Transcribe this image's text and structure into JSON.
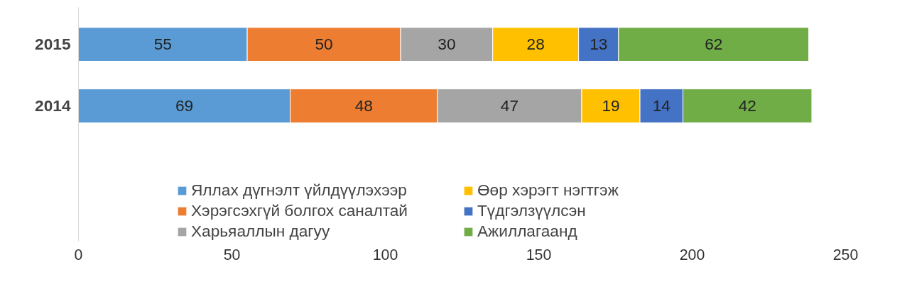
{
  "chart_data": {
    "type": "bar",
    "orientation": "horizontal",
    "stacked": true,
    "data_labels": true,
    "legend": "bottom",
    "grid": false,
    "categories": [
      "2015",
      "2014"
    ],
    "xlim": [
      0,
      250
    ],
    "xticks": [
      0,
      50,
      100,
      150,
      200,
      250
    ],
    "series": [
      {
        "name": "Яллах дүгнэлт үйлдүүлэхээр",
        "color": "#5b9bd5",
        "values": [
          55,
          69
        ]
      },
      {
        "name": "Хэрэгсэхгүй болгох саналтай",
        "color": "#ed7d31",
        "values": [
          50,
          48
        ]
      },
      {
        "name": "Харьяаллын дагуу",
        "color": "#a5a5a5",
        "values": [
          30,
          47
        ]
      },
      {
        "name": "Өөр хэрэгт нэгтгэж",
        "color": "#ffc000",
        "values": [
          28,
          19
        ]
      },
      {
        "name": "Түдгэлзүүлсэн",
        "color": "#4472c4",
        "values": [
          13,
          14
        ]
      },
      {
        "name": "Ажиллагаанд",
        "color": "#70ad47",
        "values": [
          62,
          42
        ]
      }
    ]
  }
}
